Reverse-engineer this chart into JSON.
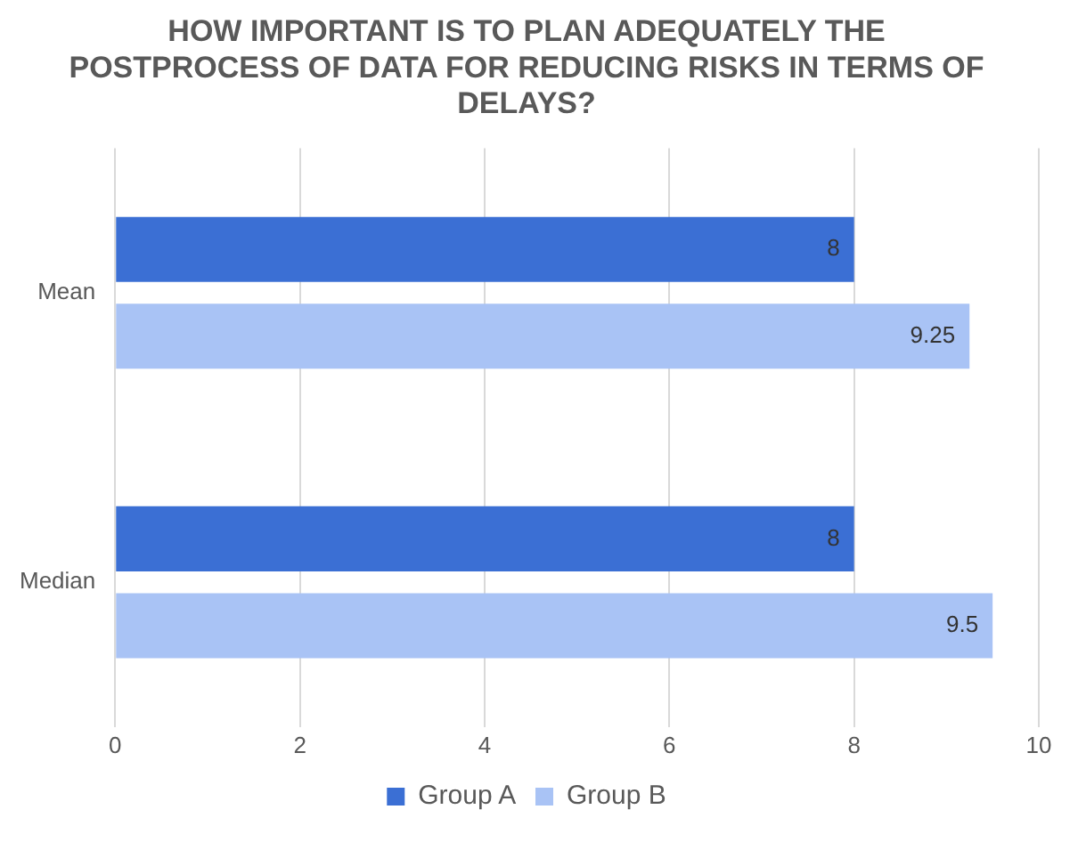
{
  "chart_data": {
    "type": "bar",
    "orientation": "horizontal",
    "title": "HOW IMPORTANT IS TO PLAN ADEQUATELY THE POSTPROCESS OF DATA FOR REDUCING RISKS IN TERMS OF DELAYS?",
    "categories": [
      "Mean",
      "Median"
    ],
    "series": [
      {
        "name": "Group A",
        "color": "#3b6fd4",
        "values": [
          8,
          8
        ]
      },
      {
        "name": "Group B",
        "color": "#a9c3f5",
        "values": [
          9.25,
          9.5
        ]
      }
    ],
    "xlim": [
      0,
      10
    ],
    "xticks": [
      0,
      2,
      4,
      6,
      8,
      10
    ],
    "grid": "x",
    "legend": "bottom",
    "data_labels": true
  }
}
